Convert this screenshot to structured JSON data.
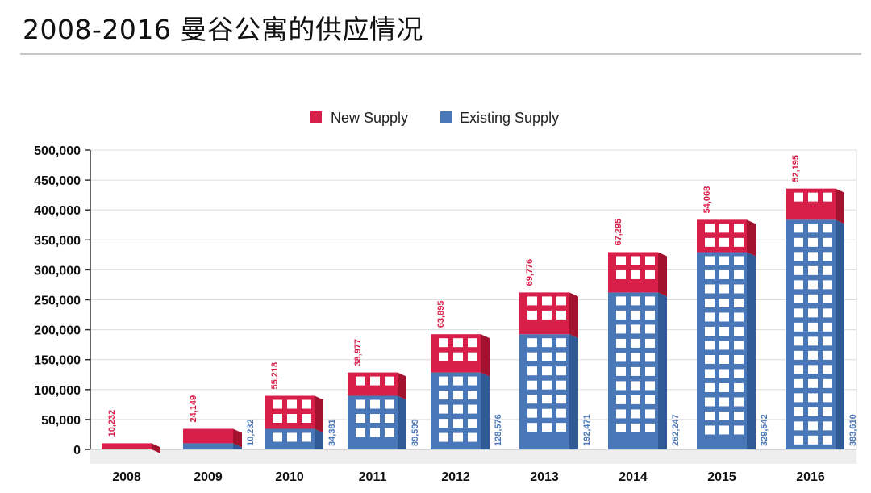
{
  "page_title": "2008-2016 曼谷公寓的供应情况",
  "colors": {
    "new_front": "#d81f4a",
    "new_side": "#a3122f",
    "existing_front": "#4a77b8",
    "existing_side": "#2f5a96",
    "window": "#ffffff",
    "grid": "#dcdcdc",
    "axis": "#333333"
  },
  "chart_data": {
    "type": "bar",
    "stacked": true,
    "title": "",
    "xlabel": "",
    "ylabel": "",
    "ylim": [
      0,
      500000
    ],
    "yticks": [
      0,
      50000,
      100000,
      150000,
      200000,
      250000,
      300000,
      350000,
      400000,
      450000,
      500000
    ],
    "ytick_labels": [
      "0",
      "50,000",
      "100,000",
      "150,000",
      "200,000",
      "250,000",
      "300,000",
      "350,000",
      "400,000",
      "450,000",
      "500,000"
    ],
    "categories": [
      "2008",
      "2009",
      "2010",
      "2011",
      "2012",
      "2013",
      "2014",
      "2015",
      "2016"
    ],
    "series": [
      {
        "name": "Existing Supply",
        "values": [
          0,
          10232,
          34381,
          89599,
          128576,
          192471,
          262247,
          329542,
          383610
        ],
        "labels": [
          "",
          "10,232",
          "34,381",
          "89,599",
          "128,576",
          "192,471",
          "262,247",
          "329,542",
          "383,610"
        ]
      },
      {
        "name": "New Supply",
        "values": [
          10232,
          24149,
          55218,
          38977,
          63895,
          69776,
          67295,
          54068,
          52195
        ],
        "labels": [
          "10,232",
          "24,149",
          "55,218",
          "38,977",
          "63,895",
          "69,776",
          "67,295",
          "54,068",
          "52,195"
        ]
      }
    ],
    "legend": {
      "position": "top-center",
      "items": [
        "New Supply",
        "Existing Supply"
      ]
    },
    "grid": true
  }
}
